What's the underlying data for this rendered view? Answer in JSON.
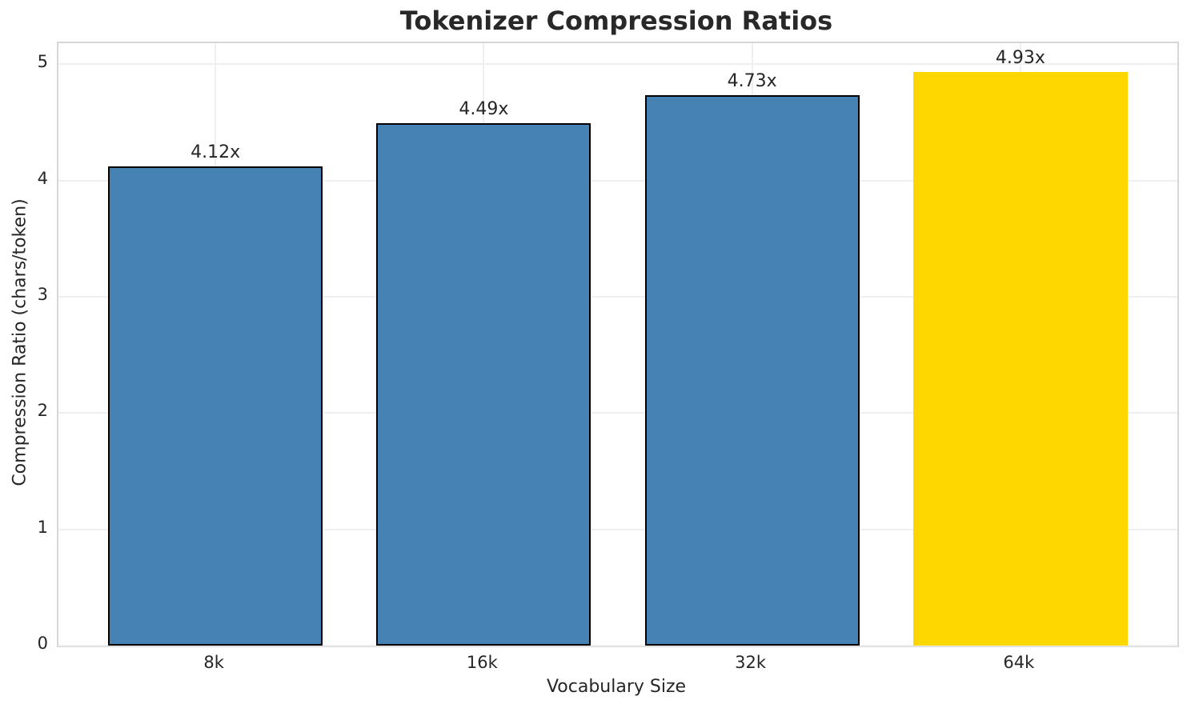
{
  "chart_data": {
    "type": "bar",
    "title": "Tokenizer Compression Ratios",
    "xlabel": "Vocabulary Size",
    "ylabel": "Compression Ratio (chars/token)",
    "categories": [
      "8k",
      "16k",
      "32k",
      "64k"
    ],
    "values": [
      4.12,
      4.49,
      4.73,
      4.93
    ],
    "bar_labels": [
      "4.12x",
      "4.49x",
      "4.73x",
      "4.93x"
    ],
    "bar_colors": [
      "#4682b4",
      "#4682b4",
      "#4682b4",
      "#ffd700"
    ],
    "bar_edge_colors": [
      "#000000",
      "#000000",
      "#000000",
      "none"
    ],
    "highlight_index": 3,
    "y_ticks": [
      0,
      1,
      2,
      3,
      4,
      5
    ],
    "y_tick_labels": [
      "0",
      "1",
      "2",
      "3",
      "4",
      "5"
    ],
    "ylim": [
      0,
      5.18
    ],
    "grid": true,
    "legend": "none",
    "colors": {
      "bar_default": "#4682b4",
      "bar_highlight": "#ffd700",
      "grid": "#efefef",
      "spine": "#d6d6d6",
      "text": "#262626"
    }
  }
}
